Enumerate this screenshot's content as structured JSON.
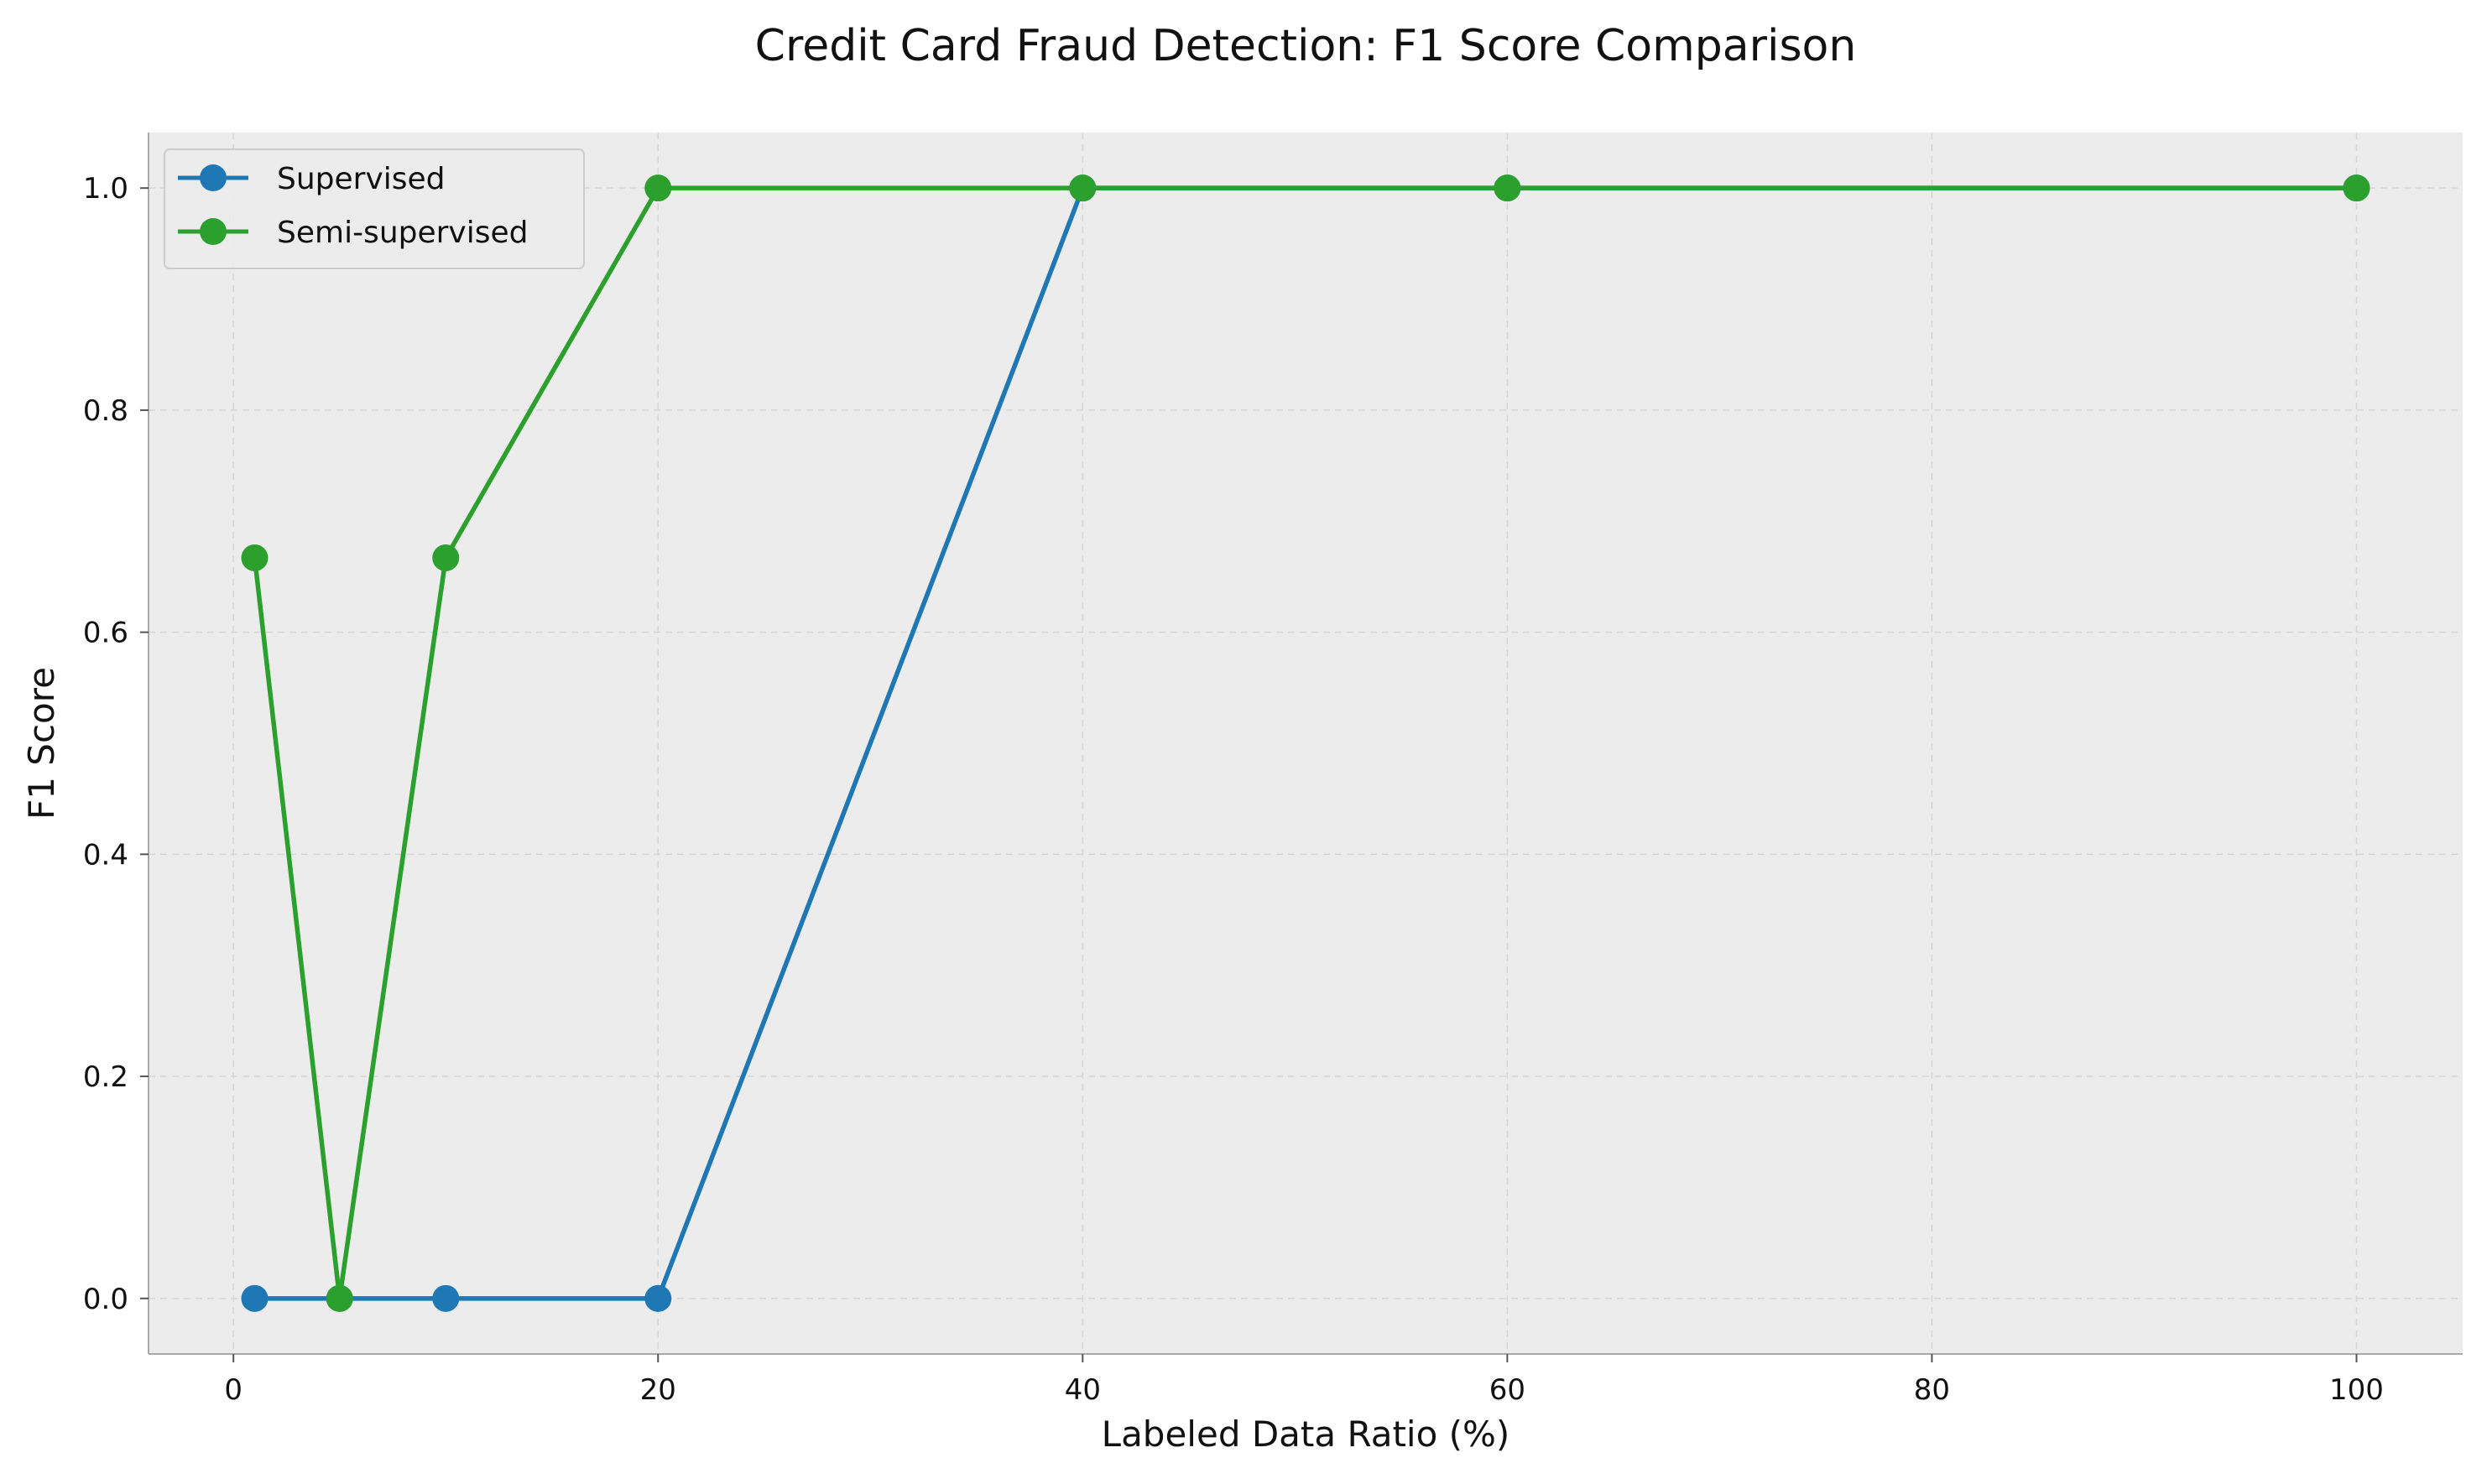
{
  "chart_data": {
    "type": "line",
    "title": "Credit Card Fraud Detection: F1 Score Comparison",
    "xlabel": "Labeled Data Ratio (%)",
    "ylabel": "F1 Score",
    "xlim": [
      -4,
      105
    ],
    "ylim": [
      -0.05,
      1.05
    ],
    "x_ticks": [
      0,
      20,
      40,
      60,
      80,
      100
    ],
    "x_tick_labels": [
      "0",
      "20",
      "40",
      "60",
      "80",
      "100"
    ],
    "y_ticks": [
      0.0,
      0.2,
      0.4,
      0.6,
      0.8,
      1.0
    ],
    "y_tick_labels": [
      "0.0",
      "0.2",
      "0.4",
      "0.6",
      "0.8",
      "1.0"
    ],
    "grid": true,
    "legend_position": "top-left",
    "x": [
      1,
      5,
      10,
      20,
      40,
      60,
      100
    ],
    "series": [
      {
        "name": "Supervised",
        "color": "#1f77b4",
        "values": [
          0.0,
          0.0,
          0.0,
          0.0,
          1.0,
          1.0,
          1.0
        ]
      },
      {
        "name": "Semi-supervised",
        "color": "#2ca02c",
        "values": [
          0.667,
          0.0,
          0.667,
          1.0,
          1.0,
          1.0,
          1.0
        ]
      }
    ]
  }
}
